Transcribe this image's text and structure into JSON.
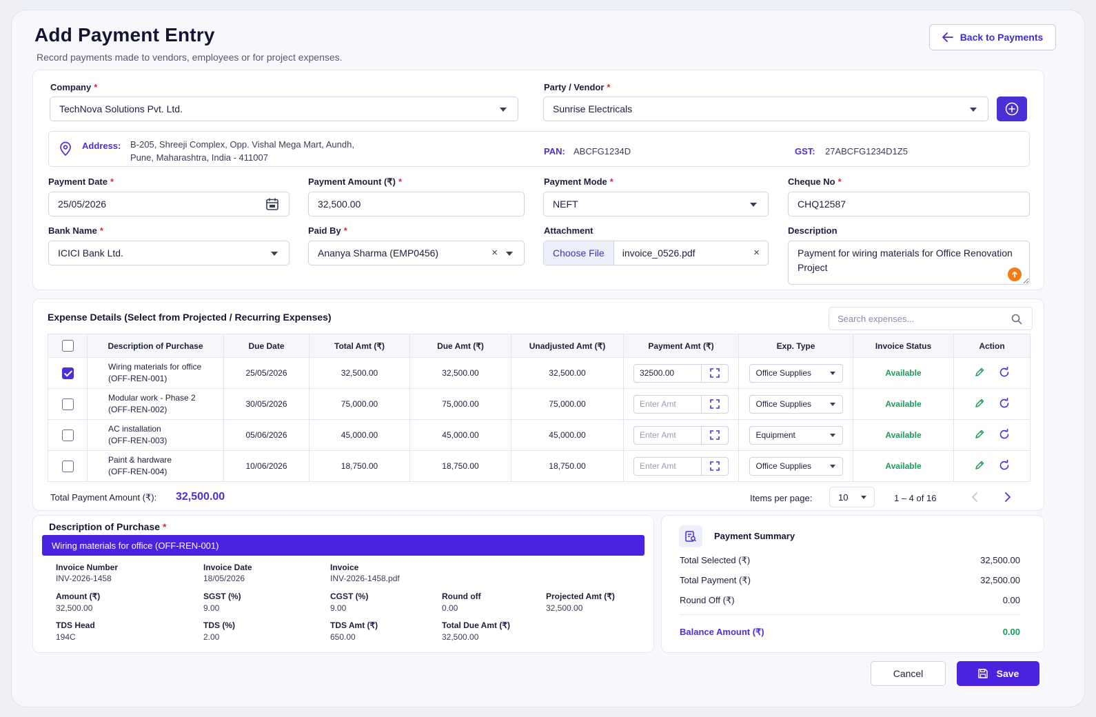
{
  "header": {
    "title": "Add Payment Entry",
    "subtitle": "Record payments made to vendors, employees or for project expenses.",
    "back_label": "Back to Payments"
  },
  "form": {
    "company_label": "Company",
    "company_value": "TechNova Solutions Pvt. Ltd.",
    "party_label": "Party / Vendor",
    "party_value": "Sunrise Electricals",
    "address_label": "Address:",
    "address_line1": "B-205, Shreeji Complex, Opp. Vishal Mega Mart, Aundh,",
    "address_line2": "Pune, Maharashtra, India - 411007",
    "pan_label": "PAN:",
    "pan_value": "ABCFG1234D",
    "gst_label": "GST:",
    "gst_value": "27ABCFG1234D1Z5",
    "payment_date_label": "Payment Date",
    "payment_date_value": "25/05/2026",
    "payment_amount_label": "Payment Amount (₹)",
    "payment_amount_value": "32,500.00",
    "payment_mode_label": "Payment Mode",
    "payment_mode_value": "NEFT",
    "cheque_label": "Cheque No",
    "cheque_value": "CHQ12587",
    "bank_label": "Bank Name",
    "bank_value": "ICICI Bank Ltd.",
    "paid_by_label": "Paid By",
    "paid_by_value": "Ananya Sharma (EMP0456)",
    "attachment_label": "Attachment",
    "choose_file_label": "Choose File",
    "attachment_file": "invoice_0526.pdf",
    "description_label": "Description",
    "description_value": "Payment for wiring materials for Office Renovation Project"
  },
  "expenses": {
    "title": "Expense Details (Select from Projected / Recurring Expenses)",
    "search_placeholder": "Search expenses...",
    "columns": [
      "Description of Purchase",
      "Due Date",
      "Total Amt (₹)",
      "Due Amt (₹)",
      "Unadjusted Amt (₹)",
      "Payment Amt (₹)",
      "Exp. Type",
      "Invoice Status",
      "Action"
    ],
    "amount_placeholder": "Enter Amt",
    "rows": [
      {
        "desc1": "Wiring materials for office",
        "desc2": "(OFF-REN-001)",
        "due_date": "25/05/2026",
        "total": "32,500.00",
        "due": "32,500.00",
        "unadjusted": "32,500.00",
        "payment": "32500.00",
        "type": "Office Supplies",
        "status": "Available",
        "checked": true
      },
      {
        "desc1": "Modular work - Phase 2",
        "desc2": "(OFF-REN-002)",
        "due_date": "30/05/2026",
        "total": "75,000.00",
        "due": "75,000.00",
        "unadjusted": "75,000.00",
        "payment": "",
        "type": "Office Supplies",
        "status": "Available",
        "checked": false
      },
      {
        "desc1": "AC installation",
        "desc2": "(OFF-REN-003)",
        "due_date": "05/06/2026",
        "total": "45,000.00",
        "due": "45,000.00",
        "unadjusted": "45,000.00",
        "payment": "",
        "type": "Equipment",
        "status": "Available",
        "checked": false
      },
      {
        "desc1": "Paint & hardware",
        "desc2": "(OFF-REN-004)",
        "due_date": "10/06/2026",
        "total": "18,750.00",
        "due": "18,750.00",
        "unadjusted": "18,750.00",
        "payment": "",
        "type": "Office Supplies",
        "status": "Available",
        "checked": false
      }
    ],
    "total_label": "Total Payment Amount (₹):",
    "total_value": "32,500.00",
    "items_per_page_label": "Items per page:",
    "items_per_page_value": "10",
    "range_text": "1 – 4 of 16"
  },
  "purchase": {
    "title": "Description of Purchase",
    "selected": "Wiring materials for office (OFF-REN-001)",
    "invoice_number_label": "Invoice Number",
    "invoice_number_value": "INV-2026-1458",
    "invoice_date_label": "Invoice Date",
    "invoice_date_value": "18/05/2026",
    "invoice_label": "Invoice",
    "invoice_value": "INV-2026-1458.pdf",
    "amount_label": "Amount (₹)",
    "amount_value": "32,500.00",
    "sgst_label": "SGST (%)",
    "sgst_value": "9.00",
    "cgst_label": "CGST (%)",
    "cgst_value": "9.00",
    "round_off_label": "Round off",
    "round_off_value": "0.00",
    "projected_label": "Projected Amt (₹)",
    "projected_value": "32,500.00",
    "tds_head_label": "TDS Head",
    "tds_head_value": "194C",
    "tds_pct_label": "TDS (%)",
    "tds_pct_value": "2.00",
    "tds_amt_label": "TDS Amt (₹)",
    "tds_amt_value": "650.00",
    "total_due_label": "Total Due Amt (₹)",
    "total_due_value": "32,500.00"
  },
  "summary": {
    "title": "Payment Summary",
    "total_selected_label": "Total Selected (₹)",
    "total_selected_value": "32,500.00",
    "total_payment_label": "Total Payment (₹)",
    "total_payment_value": "32,500.00",
    "round_off_label": "Round Off (₹)",
    "round_off_value": "0.00",
    "balance_label": "Balance Amount (₹)",
    "balance_value": "0.00"
  },
  "footer": {
    "cancel_label": "Cancel",
    "save_label": "Save"
  },
  "colors": {
    "accent": "#4a22e0",
    "success": "#1c9a5a",
    "required": "#e0263a",
    "upload": "#f07b17"
  }
}
